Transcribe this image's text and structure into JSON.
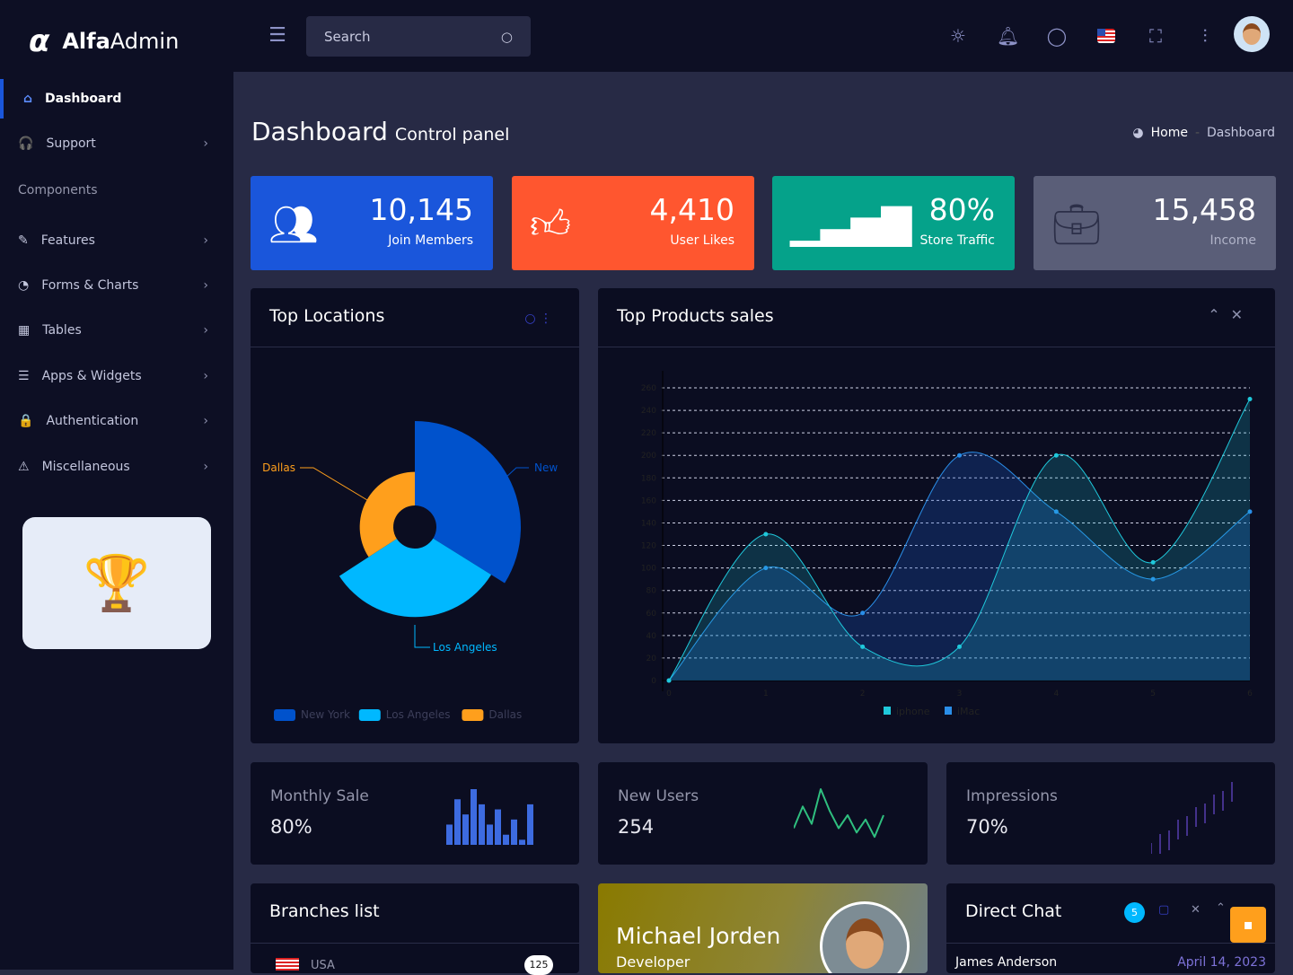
{
  "app": {
    "logo_symbol": "α",
    "name_bold": "Alfa",
    "name_rest": "Admin"
  },
  "header": {
    "search_placeholder": "Search",
    "icons": [
      "menu-icon",
      "sun-icon",
      "bell-icon",
      "chat-icon",
      "us-flag-icon",
      "fullscreen-icon",
      "sliders-icon",
      "avatar"
    ]
  },
  "sidebar": {
    "items": [
      {
        "label": "Dashboard",
        "icon": "⌂",
        "active": true
      },
      {
        "label": "Support",
        "icon": "🎧",
        "chev": true
      },
      {
        "label": "Components",
        "section": true
      },
      {
        "label": "Features",
        "icon": "✎",
        "chev": true
      },
      {
        "label": "Forms & Charts",
        "icon": "◔",
        "chev": true
      },
      {
        "label": "Tables",
        "icon": "▦",
        "chev": true
      },
      {
        "label": "Apps & Widgets",
        "icon": "☰",
        "chev": true
      },
      {
        "label": "Authentication",
        "icon": "🔒",
        "chev": true
      },
      {
        "label": "Miscellaneous",
        "icon": "⚠",
        "chev": true
      }
    ]
  },
  "page": {
    "title": "Dashboard",
    "subtitle": "Control panel",
    "breadcrumb": [
      "Home",
      "Dashboard"
    ]
  },
  "stats": [
    {
      "value": "10,145",
      "label": "Join Members",
      "color": "#1a56db",
      "icon": "users-icon"
    },
    {
      "value": "4,410",
      "label": "User Likes",
      "color": "#ff562f",
      "icon": "thumbs-up-icon"
    },
    {
      "value": "80%",
      "label": "Store Traffic",
      "color": "#05a28a",
      "icon": "bar-chart-icon"
    },
    {
      "value": "15,458",
      "label": "Income",
      "color": "#5a5e78",
      "icon": "briefcase-icon"
    }
  ],
  "top_locations": {
    "title": "Top Locations"
  },
  "top_products": {
    "title": "Top Products sales"
  },
  "chart_data": [
    {
      "type": "pie",
      "title": "Top Locations",
      "categories": [
        "New York",
        "Los Angeles",
        "Dallas"
      ],
      "values": [
        100,
        85,
        52
      ],
      "colors": [
        "#0052cc",
        "#00b8ff",
        "#ff9f1c"
      ],
      "labels": [
        "New",
        "Los Angeles",
        "Dallas"
      ],
      "legend": "bottom"
    },
    {
      "type": "area",
      "title": "Top Products sales",
      "x": [
        0,
        1,
        2,
        3,
        4,
        5,
        6
      ],
      "ylim": [
        0,
        260
      ],
      "yticks": [
        0,
        20,
        40,
        60,
        80,
        100,
        120,
        140,
        160,
        180,
        200,
        220,
        240,
        260
      ],
      "grid": true,
      "legend": "bottom",
      "series": [
        {
          "name": "iphone",
          "values": [
            0,
            130,
            30,
            30,
            200,
            105,
            250
          ],
          "color": "#1fc8db"
        },
        {
          "name": "iMac",
          "values": [
            0,
            100,
            60,
            200,
            150,
            90,
            150
          ],
          "color": "#2a8ee8"
        }
      ]
    }
  ],
  "minis": [
    {
      "title": "Monthly Sale",
      "value": "80%",
      "spark": [
        4,
        9,
        6,
        11,
        8,
        4,
        7,
        2,
        5,
        1,
        8
      ]
    },
    {
      "title": "New Users",
      "value": "254",
      "spark": [
        3,
        8,
        4,
        12,
        7,
        3,
        6,
        2,
        5,
        1,
        6
      ]
    },
    {
      "title": "Impressions",
      "value": "70%",
      "spark": [
        1,
        3,
        2,
        5,
        4,
        6,
        5,
        7,
        6,
        8
      ]
    }
  ],
  "branches": {
    "title": "Branches list",
    "rows": [
      {
        "name": "USA",
        "count": "125"
      }
    ]
  },
  "profile": {
    "name": "Michael Jorden",
    "role": "Developer"
  },
  "chat": {
    "title": "Direct Chat",
    "badge": "5",
    "from": "James Anderson",
    "date": "April 14, 2023"
  }
}
